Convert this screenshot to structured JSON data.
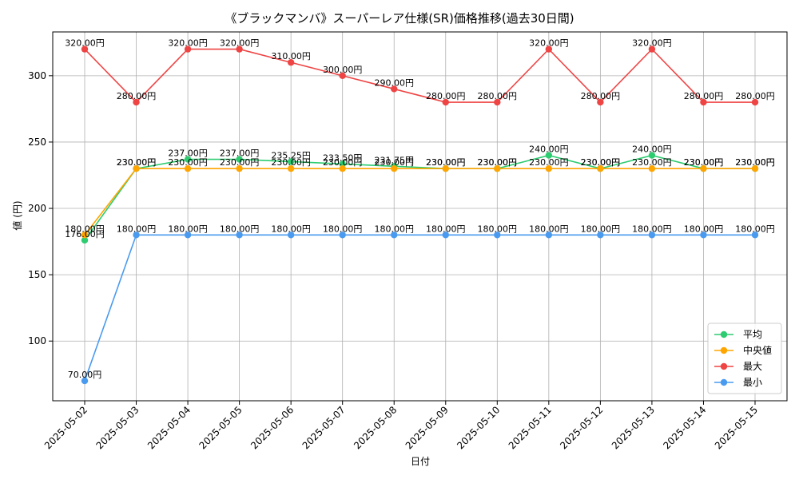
{
  "chart_data": {
    "type": "line",
    "title": "《ブラックマンバ》スーパーレア仕様(SR)価格推移(過去30日間)",
    "xlabel": "日付",
    "ylabel": "値 (円)",
    "ylim": [
      55,
      333
    ],
    "yticks": [
      100,
      150,
      200,
      250,
      300
    ],
    "grid": true,
    "legend_position": "bottom-right",
    "categories": [
      "2025-05-02",
      "2025-05-03",
      "2025-05-04",
      "2025-05-05",
      "2025-05-06",
      "2025-05-07",
      "2025-05-08",
      "2025-05-09",
      "2025-05-10",
      "2025-05-11",
      "2025-05-12",
      "2025-05-13",
      "2025-05-14",
      "2025-05-15"
    ],
    "series": [
      {
        "name": "平均",
        "color": "#2ecc71",
        "values": [
          176.0,
          230.0,
          237.0,
          237.0,
          235.25,
          233.5,
          231.75,
          230.0,
          230.0,
          240.0,
          230.0,
          240.0,
          230.0,
          230.0
        ],
        "labels": [
          "176.00円",
          "230.00円",
          "237.00円",
          "237.00円",
          "235.25円",
          "233.50円",
          "231.75円",
          "230.00円",
          "230.00円",
          "240.00円",
          "230.00円",
          "240.00円",
          "230.00円",
          "230.00円"
        ]
      },
      {
        "name": "中央値",
        "color": "#ffa500",
        "values": [
          180,
          230,
          230,
          230,
          230,
          230,
          230,
          230,
          230,
          230,
          230,
          230,
          230,
          230
        ],
        "labels": [
          "180.00円",
          "230.00円",
          "230.00円",
          "230.00円",
          "230.00円",
          "230.00円",
          "230.00円",
          "230.00円",
          "230.00円",
          "230.00円",
          "230.00円",
          "230.00円",
          "230.00円",
          "230.00円"
        ]
      },
      {
        "name": "最大",
        "color": "#ef4444",
        "values": [
          320,
          280,
          320,
          320,
          310,
          300,
          290,
          280,
          280,
          320,
          280,
          320,
          280,
          280
        ],
        "labels": [
          "320.00円",
          "280.00円",
          "320.00円",
          "320.00円",
          "310.00円",
          "300.00円",
          "290.00円",
          "280.00円",
          "280.00円",
          "320.00円",
          "280.00円",
          "320.00円",
          "280.00円",
          "280.00円"
        ]
      },
      {
        "name": "最小",
        "color": "#4a9bf0",
        "values": [
          70,
          180,
          180,
          180,
          180,
          180,
          180,
          180,
          180,
          180,
          180,
          180,
          180,
          180
        ],
        "labels": [
          "70.00円",
          "180.00円",
          "180.00円",
          "180.00円",
          "180.00円",
          "180.00円",
          "180.00円",
          "180.00円",
          "180.00円",
          "180.00円",
          "180.00円",
          "180.00円",
          "180.00円",
          "180.00円"
        ]
      }
    ]
  }
}
